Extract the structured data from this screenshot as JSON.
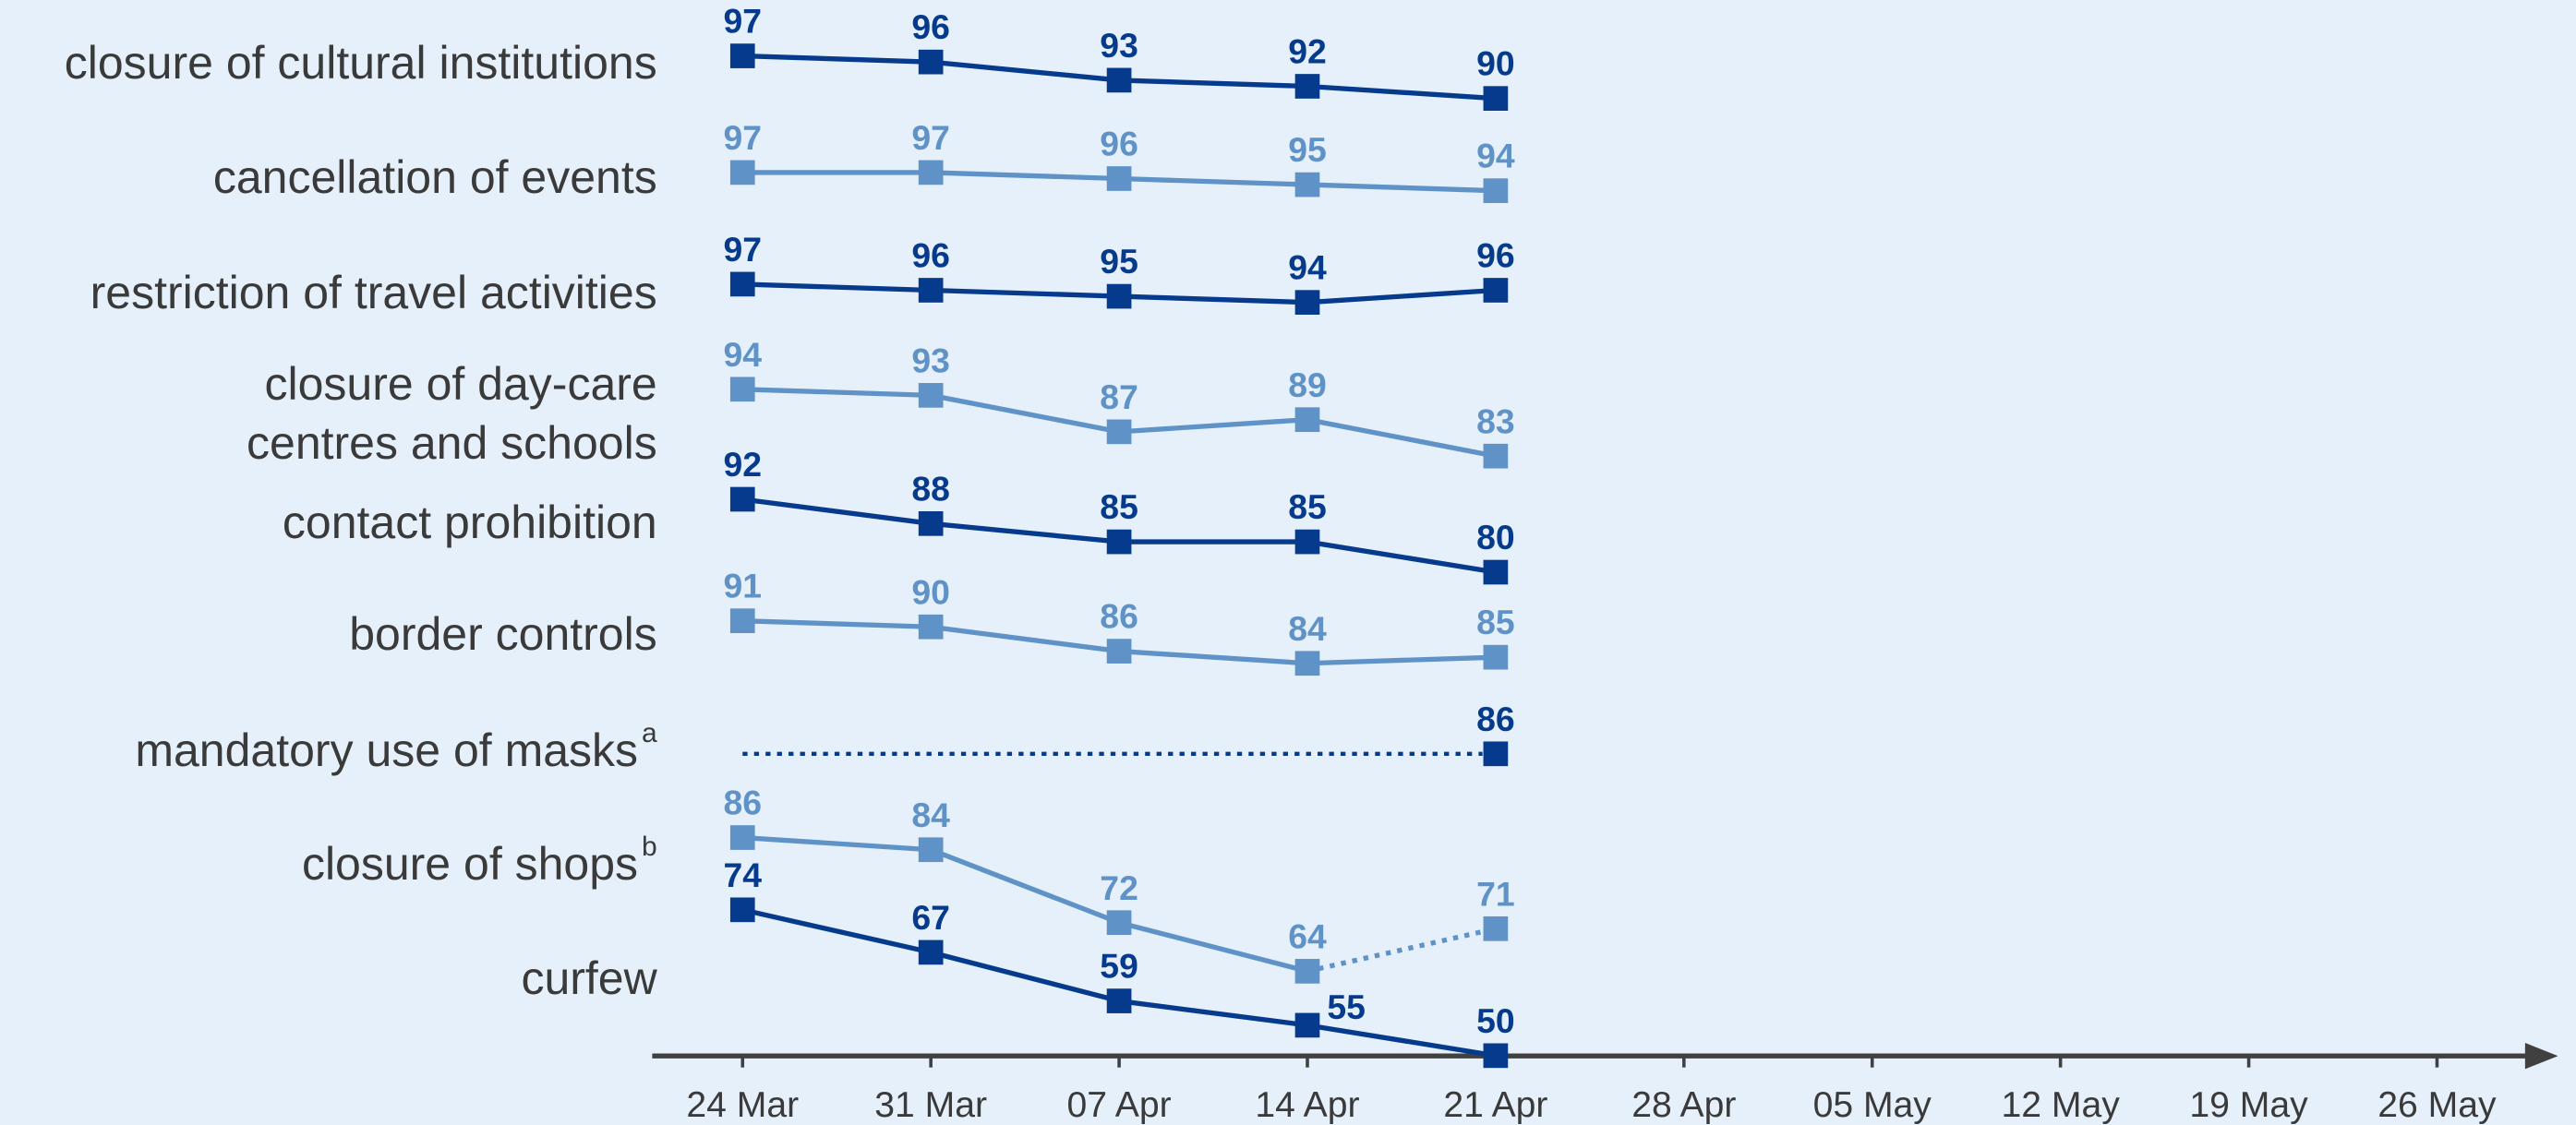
{
  "chart_data": {
    "type": "line",
    "categories": [
      "24 Mar",
      "31 Mar",
      "07 Apr",
      "14 Apr",
      "21 Apr",
      "28 Apr",
      "05 May",
      "12 May",
      "19 May",
      "26 May"
    ],
    "series": [
      {
        "name": "closure of cultural institutions",
        "color": "#063a8c",
        "values": [
          97,
          96,
          93,
          92,
          90,
          null,
          null,
          null,
          null,
          null
        ]
      },
      {
        "name": "cancellation of events",
        "color": "#5f92c6",
        "values": [
          97,
          97,
          96,
          95,
          94,
          null,
          null,
          null,
          null,
          null
        ]
      },
      {
        "name": "restriction of travel activities",
        "color": "#063a8c",
        "values": [
          97,
          96,
          95,
          94,
          96,
          null,
          null,
          null,
          null,
          null
        ]
      },
      {
        "name": "closure of day-care centres and schools",
        "color": "#5f92c6",
        "values": [
          94,
          93,
          87,
          89,
          83,
          null,
          null,
          null,
          null,
          null
        ]
      },
      {
        "name": "contact prohibition",
        "color": "#063a8c",
        "values": [
          92,
          88,
          85,
          85,
          80,
          null,
          null,
          null,
          null,
          null
        ]
      },
      {
        "name": "border controls",
        "color": "#5f92c6",
        "values": [
          91,
          90,
          86,
          84,
          85,
          null,
          null,
          null,
          null,
          null
        ]
      },
      {
        "name": "mandatory use of masks",
        "note": "a",
        "color": "#063a8c",
        "values": [
          null,
          null,
          null,
          null,
          86,
          null,
          null,
          null,
          null,
          null
        ]
      },
      {
        "name": "closure of shops",
        "note": "b",
        "color": "#5f92c6",
        "values": [
          86,
          84,
          72,
          64,
          71,
          null,
          null,
          null,
          null,
          null
        ],
        "dotted_segments": [
          3
        ]
      },
      {
        "name": "curfew",
        "color": "#063a8c",
        "values": [
          74,
          67,
          59,
          55,
          50,
          null,
          null,
          null,
          null,
          null
        ]
      }
    ]
  }
}
